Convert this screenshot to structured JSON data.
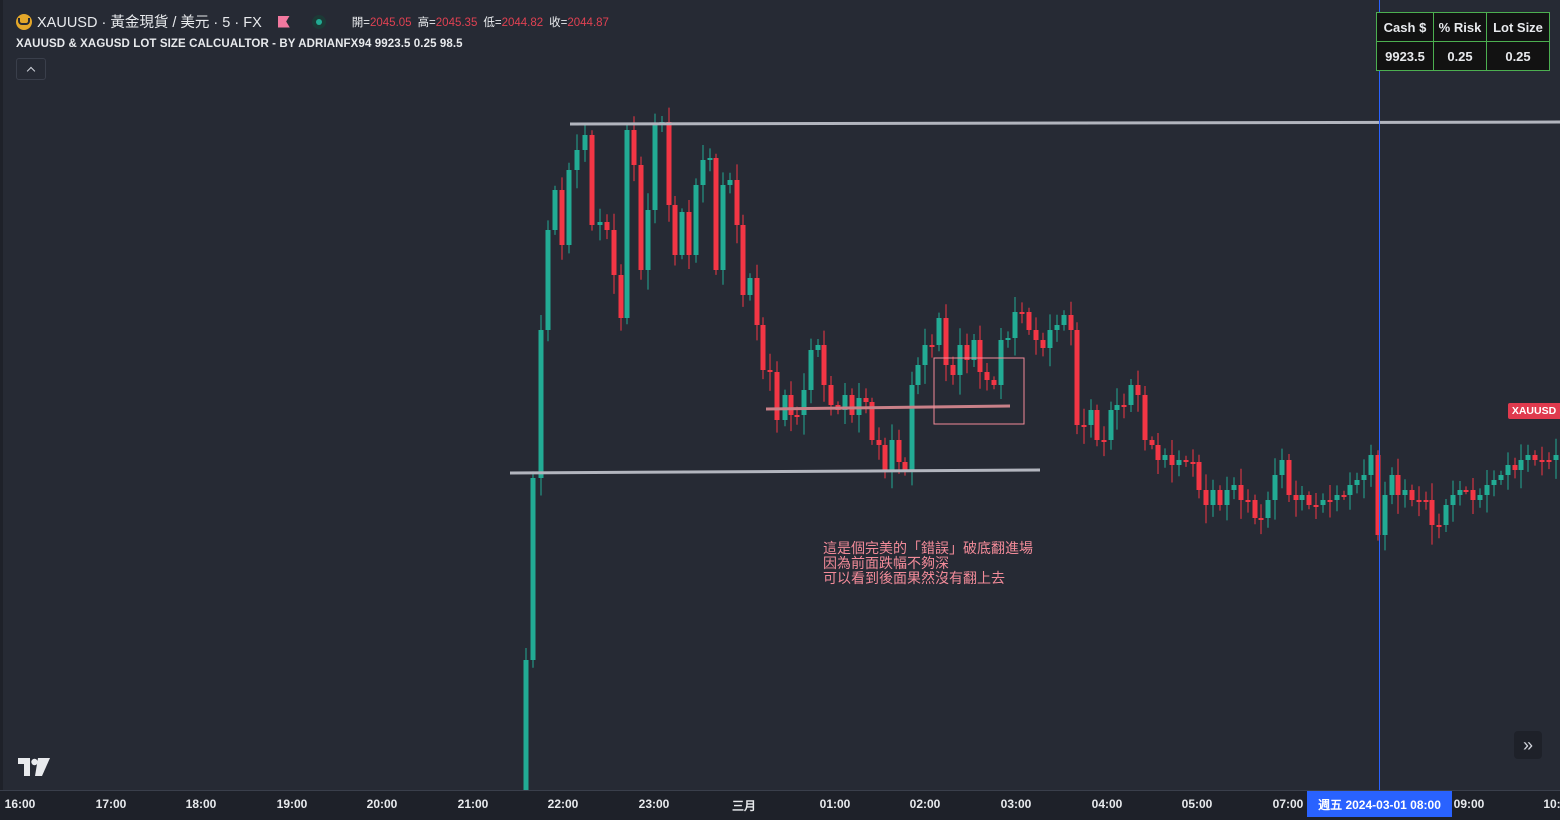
{
  "header": {
    "symbol_title": "XAUUSD · 黃金現貨 / 美元 · 5 · FX",
    "ohlc": [
      {
        "label": "開=",
        "value": "2045.05"
      },
      {
        "label": "高=",
        "value": "2045.35"
      },
      {
        "label": "低=",
        "value": "2044.82"
      },
      {
        "label": "收=",
        "value": "2044.87"
      }
    ],
    "indicator_line": "XAUUSD & XAGUSD LOT SIZE CALCUALTOR - BY ADRIANFX94 9923.5 0.25 98.5"
  },
  "risk_table": {
    "headers": [
      "Cash $",
      "% Risk",
      "Lot Size"
    ],
    "values": [
      "9923.5",
      "0.25",
      "0.25"
    ]
  },
  "price_tag": "XAUUSD",
  "annotation": "這是個完美的「錯誤」破底翻進場\n因為前面跌幅不夠深\n可以看到後面果然沒有翻上去",
  "time_axis": {
    "ticks": [
      "16:00",
      "17:00",
      "18:00",
      "19:00",
      "20:00",
      "21:00",
      "22:00",
      "23:00",
      "三月",
      "01:00",
      "02:00",
      "03:00",
      "04:00",
      "05:00",
      "07:00",
      "09:00",
      "10:"
    ],
    "crosshair_label": "週五  2024-03-01   08:00"
  },
  "colors": {
    "up": "#22ab94",
    "down": "#f23645",
    "background": "#262a34",
    "crosshair": "#2962ff",
    "level_line": "#b2b5be",
    "annotation": "#f28b99"
  },
  "icons": [
    "coin-icon",
    "flag-icon",
    "market-status-icon",
    "chevron-up-icon",
    "tradingview-logo-icon",
    "scroll-to-realtime-icon"
  ]
}
